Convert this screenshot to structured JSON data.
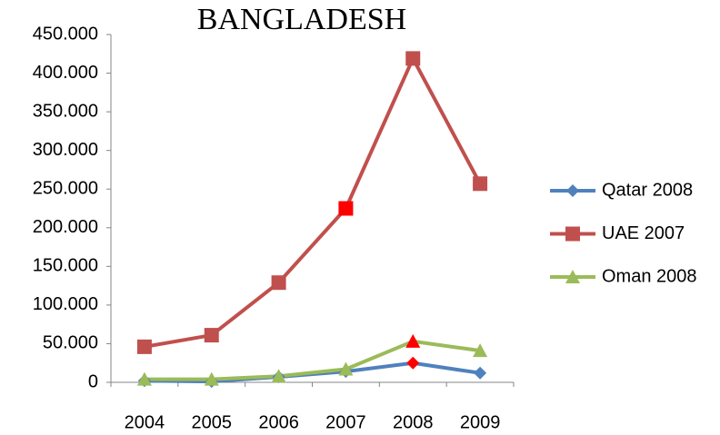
{
  "chart_data": {
    "type": "line",
    "title": "BANGLADESH",
    "categories": [
      "2004",
      "2005",
      "2006",
      "2007",
      "2008",
      "2009"
    ],
    "series": [
      {
        "name": "Qatar 2008",
        "color": "#4f81bd",
        "marker": "diamond",
        "values": [
          2000,
          1000,
          7000,
          14000,
          25000,
          12000
        ],
        "highlight": {
          "index": 4,
          "color": "#ff0000"
        }
      },
      {
        "name": "UAE 2007",
        "color": "#c0504d",
        "marker": "square",
        "values": [
          46000,
          61000,
          129000,
          225000,
          419000,
          257000
        ],
        "highlight": {
          "index": 3,
          "color": "#ff0000"
        }
      },
      {
        "name": "Oman 2008",
        "color": "#9bbb59",
        "marker": "triangle",
        "values": [
          4000,
          4000,
          8000,
          17000,
          53000,
          41000
        ],
        "highlight": {
          "index": 4,
          "color": "#ff0000"
        }
      }
    ],
    "ylim": [
      0,
      450000
    ],
    "yticks": [
      0,
      {
        "value": 50000,
        "label": "50.000"
      },
      {
        "value": 100000,
        "label": "100.000"
      },
      {
        "value": 150000,
        "label": "150.000"
      },
      {
        "value": 200000,
        "label": "200.000"
      },
      {
        "value": 250000,
        "label": "250.000"
      },
      {
        "value": 300000,
        "label": "300.000"
      },
      {
        "value": 350000,
        "label": "350.000"
      },
      {
        "value": 400000,
        "label": "400.000"
      },
      {
        "value": 450000,
        "label": "450.000"
      }
    ],
    "grid": false,
    "legend": "right"
  }
}
